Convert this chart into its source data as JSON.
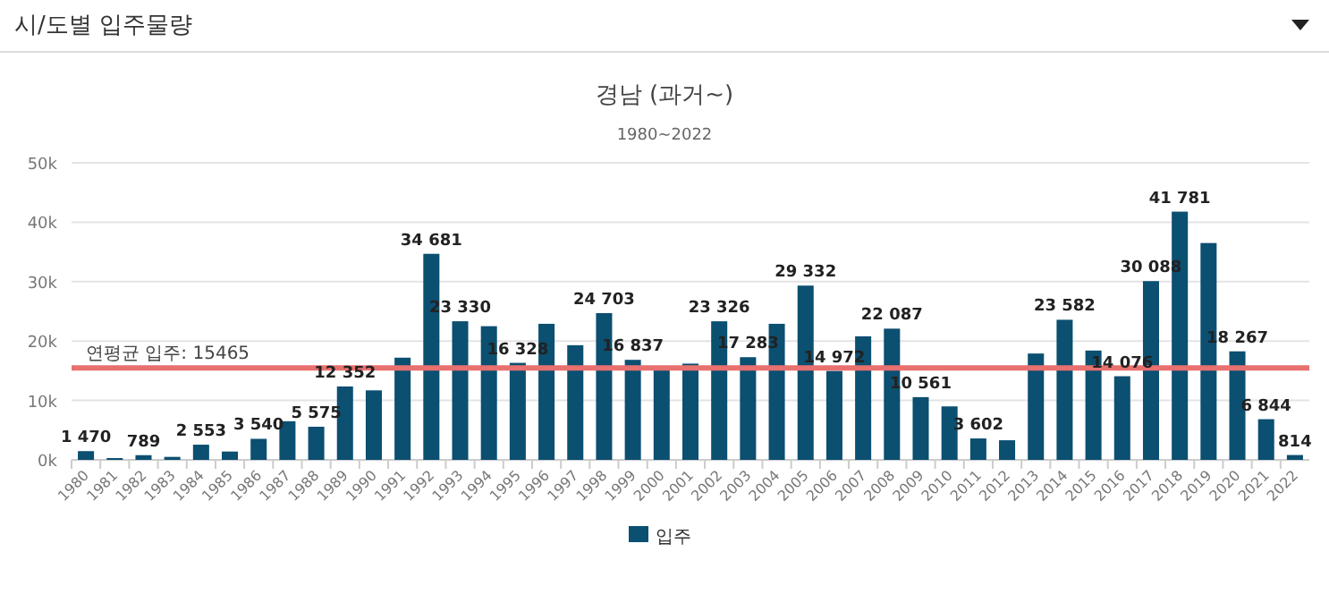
{
  "chart_data": {
    "type": "bar",
    "title": "경남 (과거~)",
    "subtitle": "1980~2022",
    "annotations": [
      "시/도별 입주물량"
    ],
    "categories": [
      "1980",
      "1981",
      "1982",
      "1983",
      "1984",
      "1985",
      "1986",
      "1987",
      "1988",
      "1989",
      "1990",
      "1991",
      "1992",
      "1993",
      "1994",
      "1995",
      "1996",
      "1997",
      "1998",
      "1999",
      "2000",
      "2001",
      "2002",
      "2003",
      "2004",
      "2005",
      "2006",
      "2007",
      "2008",
      "2009",
      "2010",
      "2011",
      "2012",
      "2013",
      "2014",
      "2015",
      "2016",
      "2017",
      "2018",
      "2019",
      "2020",
      "2021",
      "2022"
    ],
    "series": [
      {
        "name": "입주",
        "color": "#0b4f71",
        "values": [
          1470,
          300,
          789,
          500,
          2553,
          1400,
          3540,
          6500,
          5575,
          12352,
          11700,
          17200,
          34681,
          23330,
          22500,
          16328,
          22900,
          19300,
          24703,
          16837,
          15400,
          16200,
          23326,
          17283,
          22900,
          29332,
          14972,
          20800,
          22087,
          10561,
          9000,
          3602,
          3300,
          17900,
          23582,
          18400,
          14076,
          30088,
          41781,
          36500,
          18267,
          6844,
          814
        ],
        "value_labels": [
          "1 470",
          null,
          "789",
          null,
          "2 553",
          null,
          "3 540",
          null,
          "5 575",
          "12 352",
          null,
          null,
          "34 681",
          "23 330",
          null,
          "16 328",
          null,
          null,
          "24 703",
          "16 837",
          null,
          null,
          "23 326",
          "17 283",
          null,
          "29 332",
          "14 972",
          null,
          "22 087",
          "10 561",
          null,
          "3 602",
          null,
          null,
          "23 582",
          null,
          "14 076",
          "30 088",
          "41 781",
          null,
          "18 267",
          "6 844",
          "814"
        ]
      }
    ],
    "ylim": [
      0,
      50000
    ],
    "yticks": [
      {
        "value": 0,
        "label": "0k"
      },
      {
        "value": 10000,
        "label": "10k"
      },
      {
        "value": 20000,
        "label": "20k"
      },
      {
        "value": 30000,
        "label": "30k"
      },
      {
        "value": 40000,
        "label": "40k"
      },
      {
        "value": 50000,
        "label": "50k"
      }
    ],
    "grid": "y",
    "legend": "bottom",
    "ref_lines": [
      {
        "axis": "y",
        "value": 15465,
        "label": "연평균 입주: 15465",
        "color": "#e8706f"
      }
    ]
  }
}
